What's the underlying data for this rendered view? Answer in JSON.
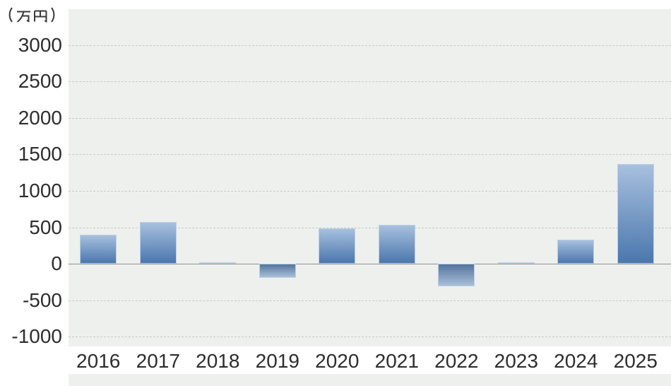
{
  "chart_data": {
    "type": "bar",
    "title": "",
    "unit_label": "（万円）",
    "categories": [
      "2016",
      "2017",
      "2018",
      "2019",
      "2020",
      "2021",
      "2022",
      "2023",
      "2024",
      "2025"
    ],
    "values": [
      400,
      570,
      20,
      -190,
      490,
      530,
      -310,
      20,
      330,
      1370
    ],
    "xlabel": "",
    "ylabel": "（万円）",
    "ylim": [
      -1000,
      3000
    ],
    "yticks": [
      3000,
      2500,
      2000,
      1500,
      1000,
      500,
      0,
      -500,
      -1000
    ],
    "grid": "horizontal-dashed",
    "legend": "none",
    "colors": {
      "bar_gradient_top": "#a7c0de",
      "bar_gradient_bottom": "#4b77ad",
      "bar_border": "#bdd0e5",
      "plot_background": "#eef0ee",
      "gridline": "#c9c9c9",
      "zero_line": "#909294",
      "text": "#2d2d2d",
      "page_background": "#ffffff"
    }
  }
}
